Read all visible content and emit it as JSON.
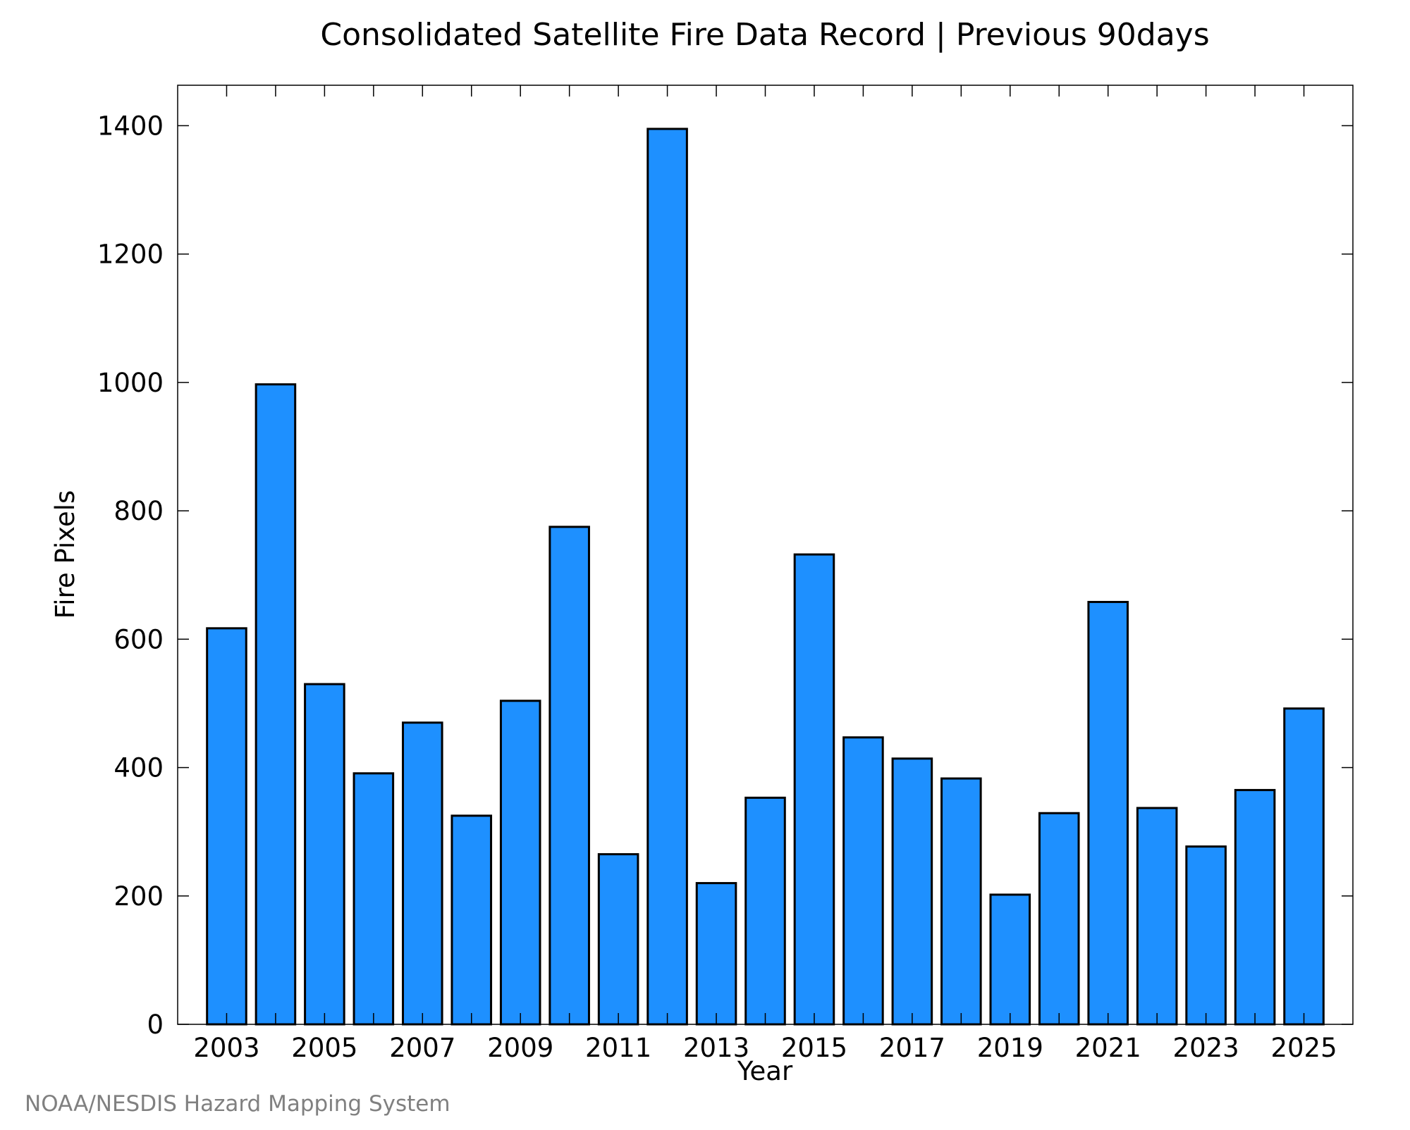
{
  "chart_data": {
    "type": "bar",
    "title": "Consolidated Satellite Fire Data Record | Previous 90days",
    "xlabel": "Year",
    "ylabel": "Fire Pixels",
    "credit": "NOAA/NESDIS Hazard Mapping System",
    "categories": [
      "2003",
      "2004",
      "2005",
      "2006",
      "2007",
      "2008",
      "2009",
      "2010",
      "2011",
      "2012",
      "2013",
      "2014",
      "2015",
      "2016",
      "2017",
      "2018",
      "2019",
      "2020",
      "2021",
      "2022",
      "2023",
      "2024",
      "2025"
    ],
    "values": [
      617,
      997,
      530,
      391,
      470,
      325,
      504,
      775,
      265,
      1395,
      220,
      353,
      732,
      447,
      414,
      383,
      202,
      329,
      658,
      337,
      277,
      365,
      492
    ],
    "x_tick_labels": [
      "2003",
      "2005",
      "2007",
      "2009",
      "2011",
      "2013",
      "2015",
      "2017",
      "2019",
      "2021",
      "2023",
      "2025"
    ],
    "y_ticks": [
      "0",
      "200",
      "400",
      "600",
      "800",
      "1000",
      "1200",
      "1400"
    ],
    "ylim": [
      0,
      1463
    ],
    "xlim": [
      2002,
      2026
    ],
    "grid": false,
    "bar_color": "#1E90FF"
  }
}
